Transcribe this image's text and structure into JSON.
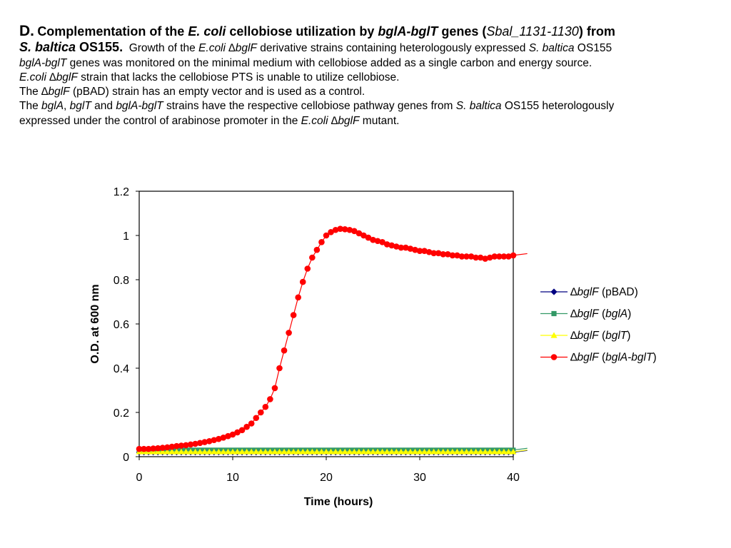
{
  "caption": {
    "l1": [
      "D.",
      "Complementation of the ",
      "E. coli",
      " cellobiose utilization by ",
      "bglA-bglT",
      " genes (",
      "Sbal_1131-1130",
      ") from"
    ],
    "l2": [
      "S. baltica",
      " OS155.",
      "  Growth of the ",
      "E.coli ∆bglF",
      " derivative strains containing heterologously expressed ",
      "S. baltica",
      " OS155"
    ],
    "l3": [
      "bglA-bglT",
      " genes was monitored on the minimal medium with cellobiose added as a single carbon and energy source."
    ],
    "l4": [
      "E.coli ∆bglF",
      " strain that lacks the cellobiose PTS is unable to utilize cellobiose."
    ],
    "l5": [
      "The ",
      "∆bglF",
      " (pBAD) strain has an empty vector and is used as a control."
    ],
    "l6": [
      "The ",
      "bglA",
      ", ",
      "bglT",
      " and ",
      "bglA-bglT",
      " strains have the respective cellobiose pathway genes from ",
      "S. baltica",
      " OS155 heterologously"
    ],
    "l7": [
      "expressed under the control of arabinose promoter in the ",
      "E.coli ∆bglF",
      " mutant."
    ]
  },
  "chart_data": {
    "type": "line",
    "xlabel": "Time (hours)",
    "ylabel": "O.D. at 600 nm",
    "xlim": [
      0,
      40
    ],
    "ylim": [
      0,
      1.2
    ],
    "xticks": [
      "0",
      "10",
      "20",
      "30",
      "40"
    ],
    "yticks": [
      "0",
      "0.2",
      "0.4",
      "0.6",
      "0.8",
      "1",
      "1.2"
    ],
    "legend_position": "right",
    "x_step": 0.5,
    "series": [
      {
        "name": "∆bglF (pBAD)",
        "label_a": "∆bglF",
        " label_b": "",
        "color": "#000080",
        "marker": "diamond",
        "constant": 0.02
      },
      {
        "name": "∆bglF (bglA)",
        "color": "#339966",
        "marker": "square",
        "constant": 0.03
      },
      {
        "name": "∆bglF (bglT)",
        "color": "#ffff00",
        "marker": "triangle",
        "constant": 0.022
      },
      {
        "name": "∆bglF (bglA-bglT)",
        "color": "#ff0000",
        "marker": "circle",
        "values": [
          0.035,
          0.035,
          0.035,
          0.037,
          0.038,
          0.04,
          0.042,
          0.045,
          0.048,
          0.05,
          0.052,
          0.055,
          0.058,
          0.062,
          0.066,
          0.07,
          0.075,
          0.08,
          0.086,
          0.093,
          0.1,
          0.11,
          0.12,
          0.135,
          0.15,
          0.175,
          0.2,
          0.225,
          0.26,
          0.31,
          0.4,
          0.48,
          0.56,
          0.64,
          0.72,
          0.79,
          0.85,
          0.9,
          0.935,
          0.97,
          1.0,
          1.015,
          1.025,
          1.03,
          1.028,
          1.025,
          1.02,
          1.01,
          1.0,
          0.99,
          0.98,
          0.975,
          0.97,
          0.96,
          0.955,
          0.95,
          0.945,
          0.945,
          0.94,
          0.935,
          0.93,
          0.93,
          0.925,
          0.92,
          0.92,
          0.915,
          0.915,
          0.91,
          0.91,
          0.905,
          0.905,
          0.905,
          0.9,
          0.9,
          0.895,
          0.9,
          0.905,
          0.905,
          0.905,
          0.905,
          0.91
        ]
      }
    ],
    "legend": [
      {
        "a": "∆",
        "b": "bglF",
        " c": "",
        "paren": "(pBAD)",
        "pi": false
      },
      {
        "a": "∆",
        "b": "bglF",
        "paren": "bglA",
        "pi": true
      },
      {
        "a": "∆",
        "b": "bglF",
        "paren": "bglT",
        "pi": true
      },
      {
        "a": "∆",
        "b": "bglF",
        "paren": "bglA-bglT",
        "pi": true
      }
    ]
  }
}
